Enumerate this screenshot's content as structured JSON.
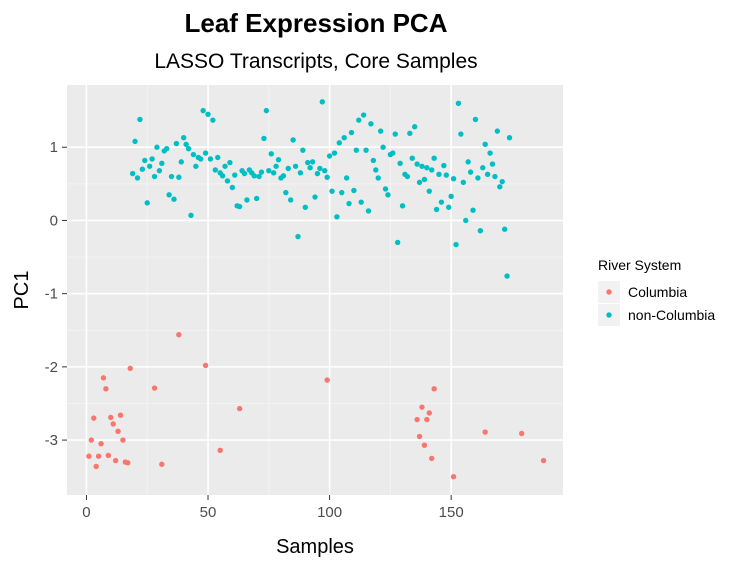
{
  "chart_data": {
    "type": "scatter",
    "title": "Leaf Expression PCA",
    "subtitle": "LASSO Transcripts, Core Samples",
    "xlabel": "Samples",
    "ylabel": "PC1",
    "xlim": [
      -8,
      196
    ],
    "ylim": [
      -3.75,
      1.85
    ],
    "x_ticks": [
      0,
      50,
      100,
      150
    ],
    "x_tick_labels": [
      "0",
      "50",
      "100",
      "150"
    ],
    "y_ticks": [
      1,
      0,
      -1,
      -2,
      -3
    ],
    "y_tick_labels": [
      "1",
      "0",
      "-1",
      "-2",
      "-3"
    ],
    "grid": true,
    "legend": {
      "title": "River System",
      "position": "right"
    },
    "series": [
      {
        "name": "Columbia",
        "color": "#F8766D",
        "points": [
          [
            1,
            -3.22
          ],
          [
            2,
            -3.0
          ],
          [
            3,
            -2.7
          ],
          [
            4,
            -3.36
          ],
          [
            5,
            -3.22
          ],
          [
            6,
            -3.05
          ],
          [
            7,
            -2.15
          ],
          [
            8,
            -2.3
          ],
          [
            9,
            -3.21
          ],
          [
            10,
            -2.69
          ],
          [
            11,
            -2.78
          ],
          [
            12,
            -3.28
          ],
          [
            13,
            -2.88
          ],
          [
            14,
            -2.66
          ],
          [
            15,
            -3.0
          ],
          [
            16,
            -3.3
          ],
          [
            17,
            -3.31
          ],
          [
            18,
            -2.02
          ],
          [
            28,
            -2.29
          ],
          [
            31,
            -3.33
          ],
          [
            38,
            -1.56
          ],
          [
            49,
            -1.98
          ],
          [
            55,
            -3.14
          ],
          [
            63,
            -2.57
          ],
          [
            99,
            -2.18
          ],
          [
            136,
            -2.72
          ],
          [
            137,
            -2.95
          ],
          [
            138,
            -2.55
          ],
          [
            139,
            -3.07
          ],
          [
            140,
            -2.72
          ],
          [
            141,
            -2.63
          ],
          [
            142,
            -3.25
          ],
          [
            143,
            -2.3
          ],
          [
            151,
            -3.5
          ],
          [
            164,
            -2.89
          ],
          [
            179,
            -2.91
          ],
          [
            188,
            -3.28
          ]
        ]
      },
      {
        "name": "non-Columbia",
        "color": "#00BFC4",
        "points": [
          [
            19,
            0.64
          ],
          [
            20,
            1.08
          ],
          [
            21,
            0.58
          ],
          [
            22,
            1.38
          ],
          [
            23,
            0.7
          ],
          [
            24,
            0.82
          ],
          [
            25,
            0.24
          ],
          [
            26,
            0.74
          ],
          [
            27,
            0.84
          ],
          [
            28,
            0.6
          ],
          [
            29,
            1.0
          ],
          [
            30,
            0.68
          ],
          [
            31,
            0.78
          ],
          [
            32,
            0.95
          ],
          [
            33,
            0.98
          ],
          [
            34,
            0.35
          ],
          [
            35,
            0.6
          ],
          [
            36,
            0.29
          ],
          [
            37,
            1.05
          ],
          [
            38,
            0.59
          ],
          [
            39,
            0.8
          ],
          [
            40,
            1.13
          ],
          [
            41,
            1.04
          ],
          [
            42,
            0.98
          ],
          [
            43,
            0.07
          ],
          [
            44,
            0.9
          ],
          [
            45,
            0.74
          ],
          [
            46,
            0.86
          ],
          [
            47,
            0.84
          ],
          [
            48,
            1.5
          ],
          [
            49,
            0.92
          ],
          [
            50,
            1.45
          ],
          [
            51,
            0.84
          ],
          [
            52,
            1.37
          ],
          [
            53,
            0.69
          ],
          [
            54,
            0.86
          ],
          [
            55,
            0.65
          ],
          [
            56,
            0.61
          ],
          [
            57,
            0.74
          ],
          [
            58,
            0.54
          ],
          [
            59,
            0.79
          ],
          [
            60,
            0.45
          ],
          [
            61,
            0.62
          ],
          [
            62,
            0.2
          ],
          [
            63,
            0.19
          ],
          [
            64,
            0.68
          ],
          [
            65,
            0.64
          ],
          [
            66,
            0.28
          ],
          [
            67,
            0.69
          ],
          [
            68,
            0.65
          ],
          [
            69,
            0.61
          ],
          [
            70,
            0.3
          ],
          [
            71,
            0.6
          ],
          [
            72,
            0.66
          ],
          [
            73,
            1.12
          ],
          [
            74,
            1.5
          ],
          [
            75,
            0.68
          ],
          [
            76,
            0.91
          ],
          [
            77,
            0.65
          ],
          [
            78,
            0.74
          ],
          [
            79,
            0.83
          ],
          [
            80,
            0.58
          ],
          [
            81,
            0.61
          ],
          [
            82,
            0.38
          ],
          [
            83,
            0.71
          ],
          [
            84,
            0.28
          ],
          [
            85,
            1.1
          ],
          [
            86,
            0.74
          ],
          [
            87,
            -0.22
          ],
          [
            88,
            0.65
          ],
          [
            89,
            0.96
          ],
          [
            90,
            0.18
          ],
          [
            91,
            0.79
          ],
          [
            92,
            0.72
          ],
          [
            93,
            0.8
          ],
          [
            94,
            0.32
          ],
          [
            95,
            0.64
          ],
          [
            96,
            0.71
          ],
          [
            97,
            1.62
          ],
          [
            98,
            0.68
          ],
          [
            99,
            0.59
          ],
          [
            100,
            0.88
          ],
          [
            101,
            0.4
          ],
          [
            102,
            0.92
          ],
          [
            103,
            0.05
          ],
          [
            104,
            1.06
          ],
          [
            105,
            0.38
          ],
          [
            106,
            1.13
          ],
          [
            107,
            0.58
          ],
          [
            108,
            0.23
          ],
          [
            109,
            1.2
          ],
          [
            110,
            0.41
          ],
          [
            111,
            0.96
          ],
          [
            112,
            1.37
          ],
          [
            113,
            0.25
          ],
          [
            114,
            1.44
          ],
          [
            115,
            0.96
          ],
          [
            116,
            0.13
          ],
          [
            117,
            1.32
          ],
          [
            118,
            0.82
          ],
          [
            119,
            0.69
          ],
          [
            120,
            0.58
          ],
          [
            121,
            1.22
          ],
          [
            122,
            1.0
          ],
          [
            123,
            0.43
          ],
          [
            124,
            0.35
          ],
          [
            125,
            0.9
          ],
          [
            126,
            0.92
          ],
          [
            127,
            1.18
          ],
          [
            128,
            -0.3
          ],
          [
            129,
            0.78
          ],
          [
            130,
            0.2
          ],
          [
            131,
            0.63
          ],
          [
            132,
            0.6
          ],
          [
            133,
            1.19
          ],
          [
            134,
            0.85
          ],
          [
            135,
            1.28
          ],
          [
            136,
            0.77
          ],
          [
            137,
            0.52
          ],
          [
            138,
            0.74
          ],
          [
            139,
            0.56
          ],
          [
            140,
            0.72
          ],
          [
            141,
            0.4
          ],
          [
            142,
            0.69
          ],
          [
            143,
            0.85
          ],
          [
            144,
            0.15
          ],
          [
            145,
            0.63
          ],
          [
            146,
            0.25
          ],
          [
            147,
            0.75
          ],
          [
            148,
            0.62
          ],
          [
            149,
            0.18
          ],
          [
            150,
            0.33
          ],
          [
            151,
            0.57
          ],
          [
            152,
            -0.33
          ],
          [
            153,
            1.6
          ],
          [
            154,
            1.18
          ],
          [
            155,
            0.52
          ],
          [
            156,
            0.0
          ],
          [
            157,
            0.8
          ],
          [
            158,
            0.66
          ],
          [
            159,
            0.14
          ],
          [
            160,
            1.38
          ],
          [
            161,
            0.58
          ],
          [
            162,
            -0.14
          ],
          [
            163,
            0.72
          ],
          [
            164,
            1.04
          ],
          [
            165,
            0.63
          ],
          [
            166,
            0.92
          ],
          [
            167,
            0.77
          ],
          [
            168,
            0.6
          ],
          [
            169,
            1.22
          ],
          [
            170,
            0.46
          ],
          [
            171,
            0.53
          ],
          [
            172,
            -0.12
          ],
          [
            173,
            -0.76
          ],
          [
            174,
            1.13
          ]
        ]
      }
    ]
  }
}
